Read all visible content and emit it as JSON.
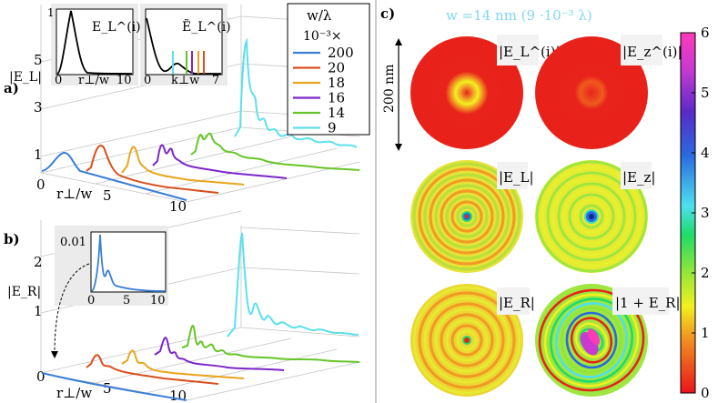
{
  "panel_labels": {
    "a": "a)",
    "b": "b)",
    "c": "c)"
  },
  "panel_a": {
    "y_label": "|E_L|",
    "y_ticks": [
      "1",
      "3",
      "5"
    ],
    "x_label": "r⊥/w",
    "x_ticks": [
      "0",
      "5",
      "10"
    ],
    "inset_left": {
      "label": "E_L^(i)",
      "y_tick": "1",
      "x_ticks": [
        "0",
        "10"
      ],
      "x_label": "r⊥/w"
    },
    "inset_right": {
      "label": "Ẽ_L^(i)",
      "x_ticks": [
        "0",
        "7"
      ],
      "x_label": "k⊥w"
    }
  },
  "panel_b": {
    "y_label": "|E_R|",
    "y_ticks": [
      "1",
      "2"
    ],
    "x_label": "r⊥/w",
    "x_ticks": [
      "0",
      "5",
      "10"
    ],
    "inset": {
      "y_tick": "0.01",
      "x_ticks": [
        "0",
        "5",
        "10"
      ]
    }
  },
  "legend": {
    "title": "w/λ",
    "subtitle": "10⁻³×",
    "entries": [
      {
        "label": "200",
        "color": "#3a7fd6"
      },
      {
        "label": "20",
        "color": "#d94f1e"
      },
      {
        "label": "18",
        "color": "#e8a51c"
      },
      {
        "label": "16",
        "color": "#7b26c9"
      },
      {
        "label": "14",
        "color": "#66c528"
      },
      {
        "label": "9",
        "color": "#5ce0ee"
      }
    ]
  },
  "panel_c": {
    "title": "w =14 nm  (9 ·10⁻³ λ)",
    "scale_label": "200 nm",
    "maps": [
      {
        "label": "|E_L^(i)|"
      },
      {
        "label": "|E_z^(i)|"
      },
      {
        "label": "|E_L|"
      },
      {
        "label": "|E_z|"
      },
      {
        "label": "|E_R|"
      },
      {
        "label": "|1 + E_R|"
      }
    ],
    "colorbar_ticks": [
      "0",
      "1",
      "2",
      "3",
      "4",
      "5",
      "6"
    ],
    "colorbar_min": 0,
    "colorbar_max": 6
  },
  "colors": {
    "grid": "#bdbdbd",
    "inset_bg": "#ebebeb"
  }
}
